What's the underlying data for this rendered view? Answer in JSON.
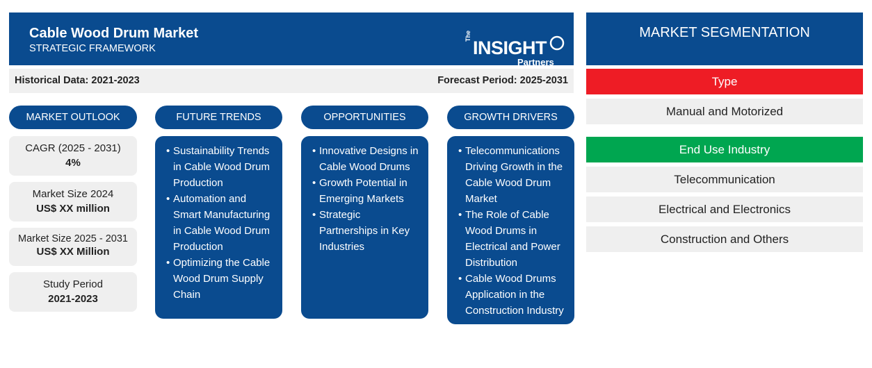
{
  "header": {
    "title": "Cable Wood Drum Market",
    "subtitle": "STRATEGIC FRAMEWORK",
    "logo": {
      "the": "The",
      "insight": "INSIGHT",
      "partners": "Partners"
    }
  },
  "period": {
    "historical": "Historical Data: 2021-2023",
    "forecast": "Forecast Period: 2025-2031"
  },
  "columns": {
    "outlook": {
      "heading": "MARKET OUTLOOK"
    },
    "trends": {
      "heading": "FUTURE TRENDS",
      "items": [
        "Sustainability Trends in Cable Wood Drum Production",
        "Automation and Smart Manufacturing in Cable Wood Drum Production",
        "Optimizing the Cable Wood Drum Supply Chain"
      ]
    },
    "opportunities": {
      "heading": "OPPORTUNITIES",
      "items": [
        "Innovative Designs in Cable Wood Drums",
        "Growth Potential in Emerging Markets",
        "Strategic Partnerships in Key Industries"
      ]
    },
    "drivers": {
      "heading": "GROWTH DRIVERS",
      "items": [
        "Telecommunications Driving Growth in the Cable Wood Drum Market",
        "The Role of Cable Wood Drums in Electrical and Power Distribution",
        "Cable Wood Drums Application in the Construction Industry"
      ]
    }
  },
  "outlook_stats": [
    {
      "label": "CAGR (2025 - 2031)",
      "value": "4%"
    },
    {
      "label": "Market Size 2024",
      "value": "US$ XX million"
    },
    {
      "label": "Market Size 2025 - 2031",
      "value": "US$ XX Million"
    },
    {
      "label": "Study Period",
      "value": "2021-2023"
    }
  ],
  "segmentation": {
    "heading": "MARKET SEGMENTATION",
    "type": {
      "label": "Type",
      "color": "#ee1c25",
      "items": [
        "Manual and Motorized"
      ]
    },
    "end_use": {
      "label": "End Use Industry",
      "color": "#00a650",
      "items": [
        "Telecommunication",
        "Electrical and Electronics",
        "Construction and Others"
      ]
    }
  },
  "colors": {
    "primary": "#0a4b8f",
    "light_gray": "#efefef"
  }
}
